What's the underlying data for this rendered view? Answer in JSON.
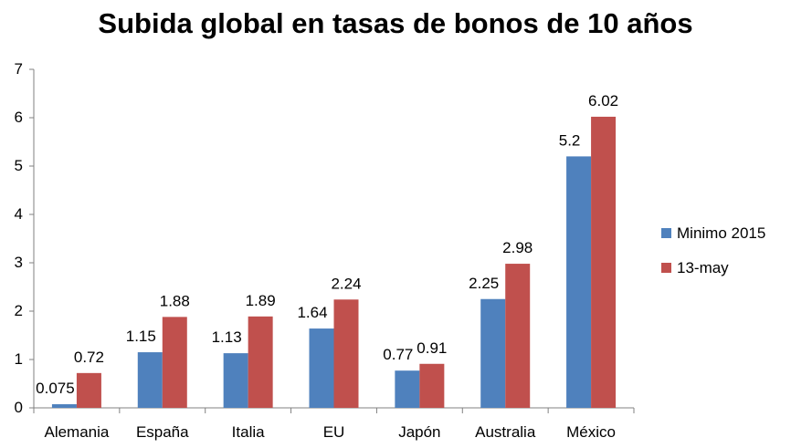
{
  "chart_data": {
    "type": "bar",
    "title": "Subida global en tasas de bonos de 10 años",
    "categories": [
      "Alemania",
      "España",
      "Italia",
      "EU",
      "Japón",
      "Australia",
      "México"
    ],
    "series": [
      {
        "name": "Minimo 2015",
        "color": "#4f81bd",
        "values": [
          0.075,
          1.15,
          1.13,
          1.64,
          0.77,
          2.25,
          5.2
        ],
        "labels": [
          "0.075",
          "1.15",
          "1.13",
          "1.64",
          "0.77",
          "2.25",
          "5.2"
        ]
      },
      {
        "name": "13-may",
        "color": "#c0504d",
        "values": [
          0.72,
          1.88,
          1.89,
          2.24,
          0.91,
          2.98,
          6.02
        ],
        "labels": [
          "0.72",
          "1.88",
          "1.89",
          "2.24",
          "0.91",
          "2.98",
          "6.02"
        ]
      }
    ],
    "ylim": [
      0,
      7
    ],
    "yticks": [
      "0",
      "1",
      "2",
      "3",
      "4",
      "5",
      "6",
      "7"
    ],
    "grid": false,
    "legend": "right"
  }
}
